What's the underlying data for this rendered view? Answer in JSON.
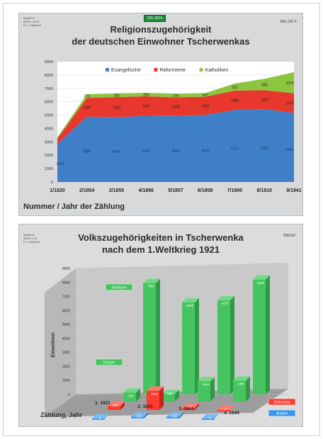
{
  "slide1": {
    "source": "Quelle 8 -\nAnFG- 1976\nPf. J. Albrecht",
    "tag": "231-2014",
    "bild": "Bild 190 ©",
    "title_line1": "Religionszugehörigkeit",
    "title_line2": "der deutschen Einwohner Tscherwenkas",
    "xlabel": "Nummer / Jahr der Zählung"
  },
  "slide2": {
    "source": "Quelle 6\nAnFG 1.10\nH. J.Albrecht",
    "bild": "Bild190",
    "title_line1": "Volkszugehörigkeiten in Tscherwenka",
    "title_line2": "nach dem 1.Weltkrieg 1921",
    "xlabel": "Zählung, Jahr",
    "ylabel": "Einwohner"
  },
  "chart_data": [
    {
      "type": "area",
      "stacked": true,
      "title": "Religionszugehörigkeit der deutschen Einwohner Tscherwenkas",
      "xlabel": "Nummer / Jahr der Zählung",
      "categories": [
        "1/1820",
        "2/1854",
        "3/1855",
        "4/1856",
        "5/1857",
        "6/1858",
        "7/1900",
        "8/1910",
        "9/1941"
      ],
      "ylim": [
        0,
        9000
      ],
      "yticks": [
        0,
        1000,
        2000,
        3000,
        4000,
        5000,
        6000,
        7000,
        8000,
        9000
      ],
      "legend_position": "top",
      "series": [
        {
          "name": "Evangelische",
          "color": "#3f7fc8",
          "values": [
            2845,
            4890,
            4844,
            4953,
            4930,
            5015,
            5379,
            5462,
            5164
          ],
          "labels": [
            "2845",
            "4890",
            "4844",
            "4953",
            "4930",
            "5015",
            "5379",
            "5462",
            "5164"
          ]
        },
        {
          "name": "Reformierte",
          "color": "#e8372d",
          "values": [
            400,
            1400,
            1503,
            1452,
            1396,
            1360,
            1458,
            1402,
            1470
          ],
          "labels": [
            "",
            "1400",
            "1503",
            "1452",
            "1396",
            "1360",
            "1458",
            "1402",
            "1470"
          ]
        },
        {
          "name": "Katholiken",
          "color": "#8cc63f",
          "values": [
            100,
            275,
            280,
            264,
            278,
            267,
            531,
            848,
            1570
          ],
          "labels": [
            "",
            "275",
            "280",
            "264",
            "278",
            "267",
            "531",
            "848",
            "1570"
          ]
        }
      ]
    },
    {
      "type": "bar",
      "subtype": "3d-grouped",
      "title": "Volkszugehörigkeiten in Tscherwenka nach dem 1.Weltkrieg 1921",
      "xlabel": "Zählung, Jahr",
      "ylabel": "Einwohner",
      "categories": [
        "1. 1921",
        "2. 1931",
        "3. 1941",
        "4. 1944"
      ],
      "ylim": [
        0,
        9000
      ],
      "yticks": [
        0,
        1000,
        2000,
        3000,
        4000,
        5000,
        6000,
        7000,
        8000,
        9000
      ],
      "series": [
        {
          "name": "Deutsche",
          "color": "#3fbf5a",
          "values": [
            7952,
            6569,
            6717,
            8200
          ],
          "labels": [
            "7952",
            "6569",
            "6717",
            "8200"
          ]
        },
        {
          "name": "Ungarn",
          "color": "#3fbf5a",
          "values": [
            638,
            540,
            1440,
            1486
          ],
          "labels": [
            "638",
            "540",
            "1440",
            "1486"
          ]
        },
        {
          "name": "Osteuropa",
          "color": "#e8372d",
          "values": [
            292,
            1376,
            166,
            0
          ],
          "labels": [
            "292",
            "1376",
            "166",
            "0"
          ]
        },
        {
          "name": "Andere",
          "color": "#3b8fe0",
          "values": [
            8,
            130,
            126,
            0
          ],
          "labels": [
            "8",
            "130",
            "126",
            "0"
          ]
        }
      ]
    }
  ]
}
